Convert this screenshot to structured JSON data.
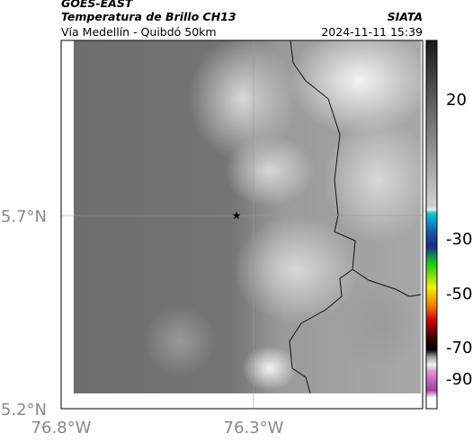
{
  "header": {
    "satellite": "GOES-EAST",
    "title": "Temperatura de Brillo CH13",
    "source": "SIATA",
    "subtitle": "Vía Medellín - Quibdó 50km",
    "timestamp": "2024-11-11 15:39"
  },
  "axes": {
    "lat_ticks": [
      "5.7°N",
      "5.2°N"
    ],
    "lon_ticks": [
      "76.8°W",
      "76.3°W"
    ]
  },
  "colorbar": {
    "ticks": [
      "20",
      "-30",
      "-50",
      "-70",
      "-90"
    ]
  }
}
